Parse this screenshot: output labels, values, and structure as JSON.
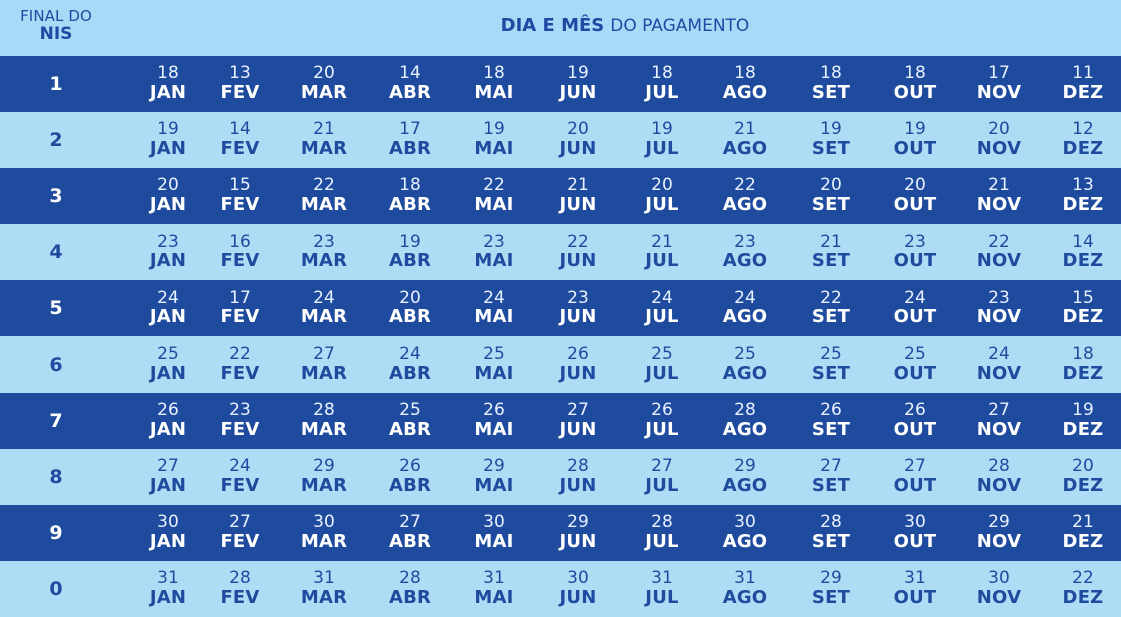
{
  "header": {
    "left_line1": "FINAL DO",
    "left_line2": "NIS",
    "title_bold": "DIA E MÊS",
    "title_rest": "DO PAGAMENTO"
  },
  "colors": {
    "dark_row": "#1f4b9f",
    "light_row": "#aedcf5",
    "header_text": "#1f4aa3"
  },
  "months": [
    "JAN",
    "FEV",
    "MAR",
    "ABR",
    "MAI",
    "JUN",
    "JUL",
    "AGO",
    "SET",
    "OUT",
    "NOV",
    "DEZ"
  ],
  "rows": [
    {
      "nis": "1",
      "days": [
        "18",
        "13",
        "20",
        "14",
        "18",
        "19",
        "18",
        "18",
        "18",
        "18",
        "17",
        "11"
      ]
    },
    {
      "nis": "2",
      "days": [
        "19",
        "14",
        "21",
        "17",
        "19",
        "20",
        "19",
        "21",
        "19",
        "19",
        "20",
        "12"
      ]
    },
    {
      "nis": "3",
      "days": [
        "20",
        "15",
        "22",
        "18",
        "22",
        "21",
        "20",
        "22",
        "20",
        "20",
        "21",
        "13"
      ]
    },
    {
      "nis": "4",
      "days": [
        "23",
        "16",
        "23",
        "19",
        "23",
        "22",
        "21",
        "23",
        "21",
        "23",
        "22",
        "14"
      ]
    },
    {
      "nis": "5",
      "days": [
        "24",
        "17",
        "24",
        "20",
        "24",
        "23",
        "24",
        "24",
        "22",
        "24",
        "23",
        "15"
      ]
    },
    {
      "nis": "6",
      "days": [
        "25",
        "22",
        "27",
        "24",
        "25",
        "26",
        "25",
        "25",
        "25",
        "25",
        "24",
        "18"
      ]
    },
    {
      "nis": "7",
      "days": [
        "26",
        "23",
        "28",
        "25",
        "26",
        "27",
        "26",
        "28",
        "26",
        "26",
        "27",
        "19"
      ]
    },
    {
      "nis": "8",
      "days": [
        "27",
        "24",
        "29",
        "26",
        "29",
        "28",
        "27",
        "29",
        "27",
        "27",
        "28",
        "20"
      ]
    },
    {
      "nis": "9",
      "days": [
        "30",
        "27",
        "30",
        "27",
        "30",
        "29",
        "28",
        "30",
        "28",
        "30",
        "29",
        "21"
      ]
    },
    {
      "nis": "0",
      "days": [
        "31",
        "28",
        "31",
        "28",
        "31",
        "30",
        "31",
        "31",
        "29",
        "31",
        "30",
        "22"
      ]
    }
  ]
}
